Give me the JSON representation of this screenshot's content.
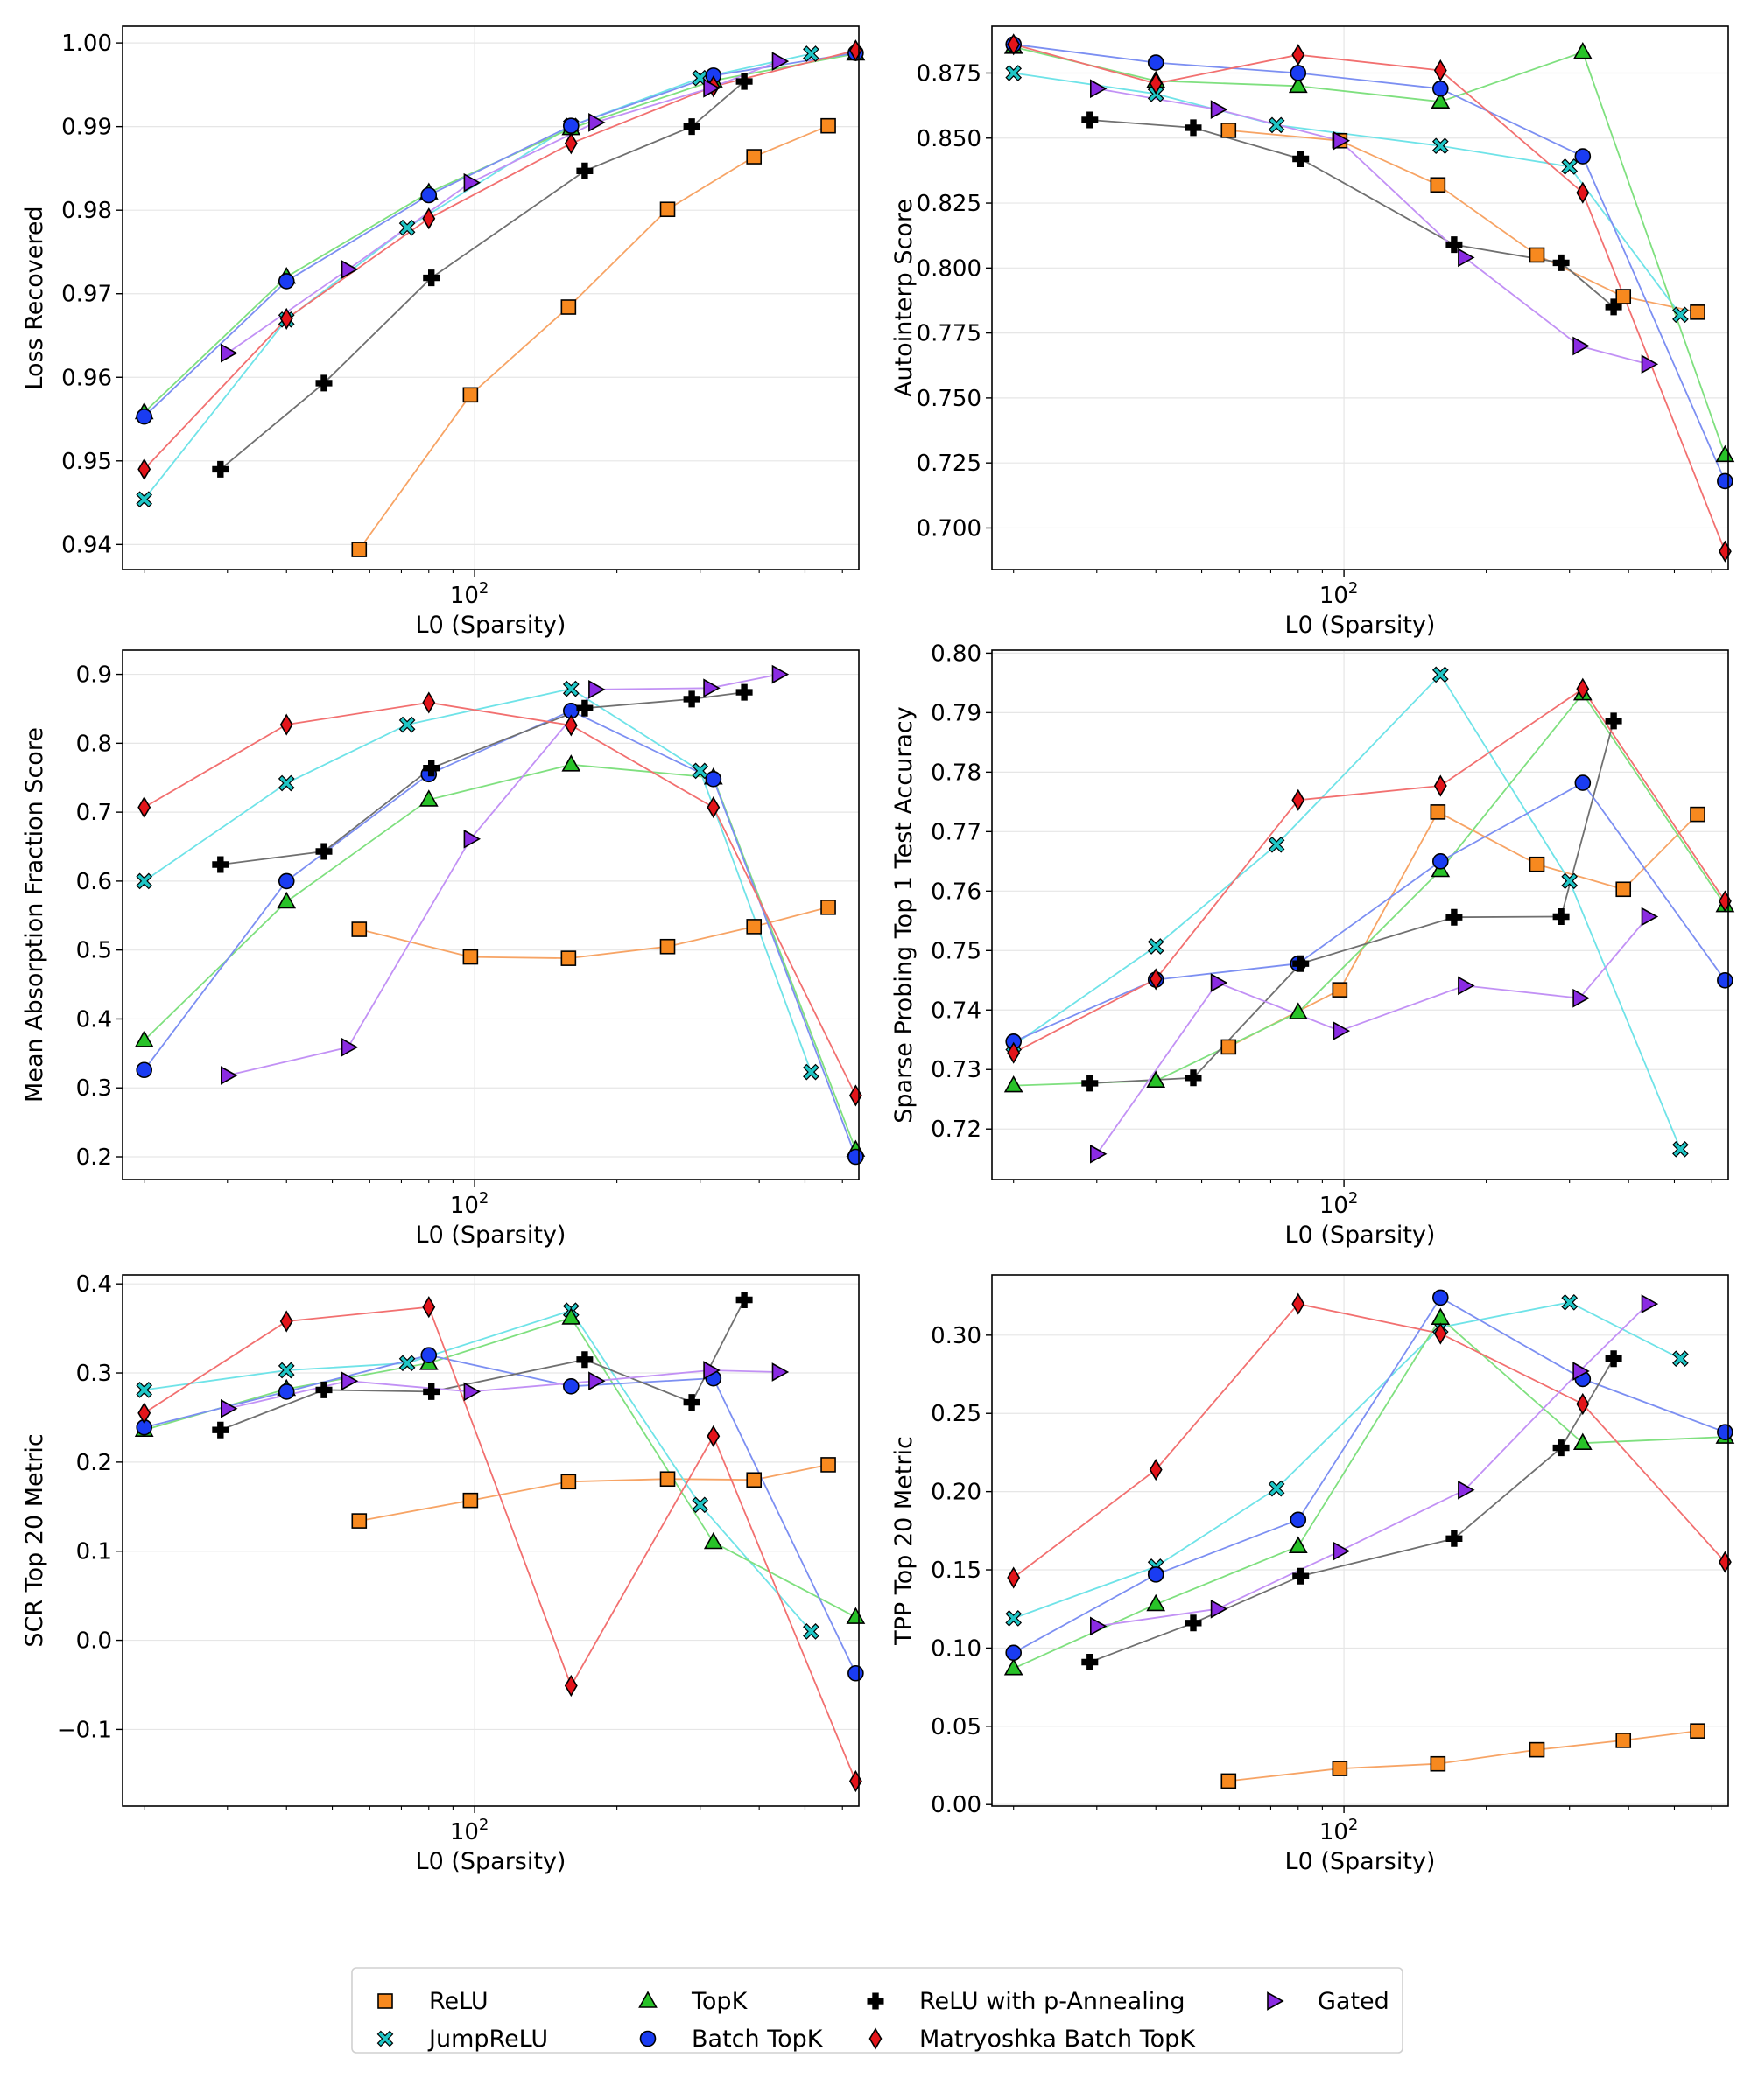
{
  "legend": {
    "placement": "bottom-center",
    "columns": 4,
    "entries": [
      {
        "name": "ReLU",
        "color": "#f7891f",
        "marker": "square"
      },
      {
        "name": "JumpReLU",
        "color": "#1fc6c6",
        "marker": "x"
      },
      {
        "name": "TopK",
        "color": "#28c228",
        "marker": "triangle"
      },
      {
        "name": "Batch TopK",
        "color": "#1a3cf2",
        "marker": "circle"
      },
      {
        "name": "ReLU with p-Annealing",
        "color": "#000000",
        "marker": "plus"
      },
      {
        "name": "Matryoshka Batch TopK",
        "color": "#e3141a",
        "marker": "diamond"
      },
      {
        "name": "Gated",
        "color": "#8a2be2",
        "marker": "triangle-right"
      }
    ]
  },
  "line_colors": {
    "ReLU": "#f7a465",
    "JumpReLU": "#6fe3e8",
    "TopK": "#7fe07f",
    "Batch TopK": "#7c8ff2",
    "ReLU with p-Annealing": "#707070",
    "Matryoshka Batch TopK": "#f27070",
    "Gated": "#c291f5"
  },
  "chart_data": [
    {
      "type": "line",
      "xscale": "log",
      "xlim": [
        18,
        650
      ],
      "ylim": [
        0.937,
        1.002
      ],
      "xticks": [
        {
          "value": 100,
          "base": "10",
          "exp": "2"
        }
      ],
      "yticks": [
        0.94,
        0.95,
        0.96,
        0.97,
        0.98,
        0.99,
        1.0
      ],
      "yticklabels": [
        "0.94",
        "0.95",
        "0.96",
        "0.97",
        "0.98",
        "0.99",
        "1.00"
      ],
      "xlabel": "L0 (Sparsity)",
      "ylabel": "Loss Recovered",
      "grid": true,
      "series": [
        {
          "name": "ReLU",
          "x": [
            57,
            98,
            158,
            256,
            390,
            560
          ],
          "y": [
            0.9394,
            0.9579,
            0.9684,
            0.9801,
            0.9864,
            0.9901
          ]
        },
        {
          "name": "JumpReLU",
          "x": [
            20,
            40,
            72,
            160,
            300,
            515
          ],
          "y": [
            0.9454,
            0.9669,
            0.9779,
            0.9901,
            0.9958,
            0.9987
          ]
        },
        {
          "name": "TopK",
          "x": [
            20,
            40,
            80,
            160,
            320,
            640
          ],
          "y": [
            0.9558,
            0.972,
            0.9821,
            0.9898,
            0.9955,
            0.9987
          ]
        },
        {
          "name": "Batch TopK",
          "x": [
            20,
            40,
            80,
            160,
            320,
            640
          ],
          "y": [
            0.9553,
            0.9715,
            0.9818,
            0.9901,
            0.9961,
            0.9988
          ]
        },
        {
          "name": "ReLU with p-Annealing",
          "x": [
            29,
            48,
            81,
            171,
            288,
            372
          ],
          "y": [
            0.949,
            0.9593,
            0.9719,
            0.9847,
            0.99,
            0.9954
          ]
        },
        {
          "name": "Matryoshka Batch TopK",
          "x": [
            20,
            40,
            80,
            160,
            320,
            640
          ],
          "y": [
            0.949,
            0.967,
            0.979,
            0.988,
            0.9948,
            0.9991
          ]
        },
        {
          "name": "Gated",
          "x": [
            30,
            54,
            98,
            180,
            315,
            440
          ],
          "y": [
            0.9629,
            0.9729,
            0.9833,
            0.9905,
            0.9946,
            0.9978
          ]
        }
      ]
    },
    {
      "type": "line",
      "xscale": "log",
      "xlim": [
        18,
        650
      ],
      "ylim": [
        0.684,
        0.893
      ],
      "xticks": [
        {
          "value": 100,
          "base": "10",
          "exp": "2"
        }
      ],
      "yticks": [
        0.7,
        0.725,
        0.75,
        0.775,
        0.8,
        0.825,
        0.85,
        0.875
      ],
      "yticklabels": [
        "0.700",
        "0.725",
        "0.750",
        "0.775",
        "0.800",
        "0.825",
        "0.850",
        "0.875"
      ],
      "xlabel": "L0 (Sparsity)",
      "ylabel": "Autointerp Score",
      "grid": true,
      "series": [
        {
          "name": "ReLU",
          "x": [
            57,
            98,
            158,
            256,
            390,
            560
          ],
          "y": [
            0.853,
            0.849,
            0.832,
            0.805,
            0.789,
            0.783
          ]
        },
        {
          "name": "JumpReLU",
          "x": [
            20,
            40,
            72,
            160,
            300,
            515
          ],
          "y": [
            0.875,
            0.867,
            0.855,
            0.847,
            0.839,
            0.782
          ]
        },
        {
          "name": "TopK",
          "x": [
            20,
            40,
            80,
            160,
            320,
            640
          ],
          "y": [
            0.885,
            0.872,
            0.87,
            0.864,
            0.883,
            0.728
          ]
        },
        {
          "name": "Batch TopK",
          "x": [
            20,
            40,
            80,
            160,
            320,
            640
          ],
          "y": [
            0.886,
            0.879,
            0.875,
            0.869,
            0.843,
            0.718
          ]
        },
        {
          "name": "ReLU with p-Annealing",
          "x": [
            29,
            48,
            81,
            171,
            288,
            372
          ],
          "y": [
            0.857,
            0.854,
            0.842,
            0.809,
            0.802,
            0.785
          ]
        },
        {
          "name": "Matryoshka Batch TopK",
          "x": [
            20,
            40,
            80,
            160,
            320,
            640
          ],
          "y": [
            0.886,
            0.871,
            0.882,
            0.876,
            0.829,
            0.691
          ]
        },
        {
          "name": "Gated",
          "x": [
            30,
            54,
            98,
            180,
            315,
            440
          ],
          "y": [
            0.869,
            0.861,
            0.849,
            0.804,
            0.77,
            0.763
          ]
        }
      ]
    },
    {
      "type": "line",
      "xscale": "log",
      "xlim": [
        18,
        650
      ],
      "ylim": [
        0.167,
        0.935
      ],
      "xticks": [
        {
          "value": 100,
          "base": "10",
          "exp": "2"
        }
      ],
      "yticks": [
        0.2,
        0.3,
        0.4,
        0.5,
        0.6,
        0.7,
        0.8,
        0.9
      ],
      "yticklabels": [
        "0.2",
        "0.3",
        "0.4",
        "0.5",
        "0.6",
        "0.7",
        "0.8",
        "0.9"
      ],
      "xlabel": "L0 (Sparsity)",
      "ylabel": "Mean Absorption Fraction Score",
      "grid": true,
      "series": [
        {
          "name": "ReLU",
          "x": [
            57,
            98,
            158,
            256,
            390,
            560
          ],
          "y": [
            0.53,
            0.49,
            0.488,
            0.505,
            0.534,
            0.562
          ]
        },
        {
          "name": "JumpReLU",
          "x": [
            20,
            40,
            72,
            160,
            300,
            515
          ],
          "y": [
            0.6,
            0.742,
            0.827,
            0.879,
            0.76,
            0.323
          ]
        },
        {
          "name": "TopK",
          "x": [
            20,
            40,
            80,
            160,
            320,
            640
          ],
          "y": [
            0.369,
            0.57,
            0.718,
            0.769,
            0.75,
            0.21
          ]
        },
        {
          "name": "Batch TopK",
          "x": [
            20,
            40,
            80,
            160,
            320,
            640
          ],
          "y": [
            0.326,
            0.6,
            0.755,
            0.847,
            0.748,
            0.2
          ]
        },
        {
          "name": "ReLU with p-Annealing",
          "x": [
            29,
            48,
            81,
            171,
            288,
            372
          ],
          "y": [
            0.624,
            0.643,
            0.764,
            0.851,
            0.864,
            0.874
          ]
        },
        {
          "name": "Matryoshka Batch TopK",
          "x": [
            20,
            40,
            80,
            160,
            320,
            640
          ],
          "y": [
            0.707,
            0.827,
            0.859,
            0.826,
            0.707,
            0.289
          ]
        },
        {
          "name": "Gated",
          "x": [
            30,
            54,
            98,
            180,
            315,
            440
          ],
          "y": [
            0.318,
            0.359,
            0.661,
            0.878,
            0.88,
            0.9
          ]
        }
      ]
    },
    {
      "type": "line",
      "xscale": "log",
      "xlim": [
        18,
        650
      ],
      "ylim": [
        0.7115,
        0.8005
      ],
      "xticks": [
        {
          "value": 100,
          "base": "10",
          "exp": "2"
        }
      ],
      "yticks": [
        0.72,
        0.73,
        0.74,
        0.75,
        0.76,
        0.77,
        0.78,
        0.79,
        0.8
      ],
      "yticklabels": [
        "0.72",
        "0.73",
        "0.74",
        "0.75",
        "0.76",
        "0.77",
        "0.78",
        "0.79",
        "0.80"
      ],
      "xlabel": "L0 (Sparsity)",
      "ylabel": "Sparse Probing Top 1 Test Accuracy",
      "grid": true,
      "series": [
        {
          "name": "ReLU",
          "x": [
            57,
            98,
            158,
            256,
            390,
            560
          ],
          "y": [
            0.7338,
            0.7434,
            0.7733,
            0.7645,
            0.7603,
            0.7729
          ]
        },
        {
          "name": "JumpReLU",
          "x": [
            20,
            40,
            72,
            160,
            300,
            515
          ],
          "y": [
            0.7341,
            0.7507,
            0.7678,
            0.7964,
            0.7617,
            0.7166
          ]
        },
        {
          "name": "TopK",
          "x": [
            20,
            40,
            80,
            160,
            320,
            640
          ],
          "y": [
            0.7273,
            0.7281,
            0.7396,
            0.7635,
            0.7932,
            0.7576
          ]
        },
        {
          "name": "Batch TopK",
          "x": [
            20,
            40,
            80,
            160,
            320,
            640
          ],
          "y": [
            0.7347,
            0.7451,
            0.7478,
            0.765,
            0.7782,
            0.745
          ]
        },
        {
          "name": "ReLU with p-Annealing",
          "x": [
            29,
            48,
            81,
            171,
            288,
            372
          ],
          "y": [
            0.7277,
            0.7286,
            0.7478,
            0.7556,
            0.7557,
            0.7886
          ]
        },
        {
          "name": "Matryoshka Batch TopK",
          "x": [
            20,
            40,
            80,
            160,
            320,
            640
          ],
          "y": [
            0.7328,
            0.7452,
            0.7753,
            0.7777,
            0.794,
            0.7583
          ]
        },
        {
          "name": "Gated",
          "x": [
            30,
            54,
            98,
            180,
            315,
            440
          ],
          "y": [
            0.7158,
            0.7446,
            0.7365,
            0.7441,
            0.742,
            0.7557
          ]
        }
      ]
    },
    {
      "type": "line",
      "xscale": "log",
      "xlim": [
        18,
        650
      ],
      "ylim": [
        -0.186,
        0.41
      ],
      "xticks": [
        {
          "value": 100,
          "base": "10",
          "exp": "2"
        }
      ],
      "yticks": [
        -0.1,
        0.0,
        0.1,
        0.2,
        0.3,
        0.4
      ],
      "yticklabels": [
        "−0.1",
        "0.0",
        "0.1",
        "0.2",
        "0.3",
        "0.4"
      ],
      "xlabel": "L0 (Sparsity)",
      "ylabel": "SCR Top 20 Metric",
      "grid": true,
      "series": [
        {
          "name": "ReLU",
          "x": [
            57,
            98,
            158,
            256,
            390,
            560
          ],
          "y": [
            0.134,
            0.157,
            0.178,
            0.181,
            0.18,
            0.197
          ]
        },
        {
          "name": "JumpReLU",
          "x": [
            20,
            40,
            72,
            160,
            300,
            515
          ],
          "y": [
            0.281,
            0.303,
            0.311,
            0.37,
            0.152,
            0.01
          ]
        },
        {
          "name": "TopK",
          "x": [
            20,
            40,
            80,
            160,
            320,
            640
          ],
          "y": [
            0.236,
            0.282,
            0.311,
            0.362,
            0.11,
            0.026
          ]
        },
        {
          "name": "Batch TopK",
          "x": [
            20,
            40,
            80,
            160,
            320,
            640
          ],
          "y": [
            0.239,
            0.279,
            0.32,
            0.285,
            0.294,
            -0.037
          ]
        },
        {
          "name": "ReLU with p-Annealing",
          "x": [
            29,
            48,
            81,
            171,
            288,
            372
          ],
          "y": [
            0.236,
            0.281,
            0.279,
            0.315,
            0.267,
            0.382
          ]
        },
        {
          "name": "Matryoshka Batch TopK",
          "x": [
            20,
            40,
            80,
            160,
            320,
            640
          ],
          "y": [
            0.255,
            0.358,
            0.374,
            -0.051,
            0.229,
            -0.158
          ]
        },
        {
          "name": "Gated",
          "x": [
            30,
            54,
            98,
            180,
            315,
            440
          ],
          "y": [
            0.26,
            0.291,
            0.279,
            0.291,
            0.303,
            0.301
          ]
        }
      ]
    },
    {
      "type": "line",
      "xscale": "log",
      "xlim": [
        18,
        650
      ],
      "ylim": [
        -0.001,
        0.3385
      ],
      "xticks": [
        {
          "value": 100,
          "base": "10",
          "exp": "2"
        }
      ],
      "yticks": [
        0.0,
        0.05,
        0.1,
        0.15,
        0.2,
        0.25,
        0.3
      ],
      "yticklabels": [
        "0.00",
        "0.05",
        "0.10",
        "0.15",
        "0.20",
        "0.25",
        "0.30"
      ],
      "xlabel": "L0 (Sparsity)",
      "ylabel": "TPP Top 20 Metric",
      "grid": true,
      "series": [
        {
          "name": "ReLU",
          "x": [
            57,
            98,
            158,
            256,
            390,
            560
          ],
          "y": [
            0.015,
            0.023,
            0.026,
            0.035,
            0.041,
            0.047
          ]
        },
        {
          "name": "JumpReLU",
          "x": [
            20,
            40,
            72,
            160,
            300,
            515
          ],
          "y": [
            0.119,
            0.152,
            0.202,
            0.305,
            0.321,
            0.285
          ]
        },
        {
          "name": "TopK",
          "x": [
            20,
            40,
            80,
            160,
            320,
            640
          ],
          "y": [
            0.087,
            0.128,
            0.165,
            0.311,
            0.231,
            0.235
          ]
        },
        {
          "name": "Batch TopK",
          "x": [
            20,
            40,
            80,
            160,
            320,
            640
          ],
          "y": [
            0.097,
            0.147,
            0.182,
            0.324,
            0.272,
            0.238
          ]
        },
        {
          "name": "ReLU with p-Annealing",
          "x": [
            29,
            48,
            81,
            171,
            288,
            372
          ],
          "y": [
            0.091,
            0.116,
            0.146,
            0.17,
            0.228,
            0.285
          ]
        },
        {
          "name": "Matryoshka Batch TopK",
          "x": [
            20,
            40,
            80,
            160,
            320,
            640
          ],
          "y": [
            0.145,
            0.214,
            0.32,
            0.301,
            0.256,
            0.155
          ]
        },
        {
          "name": "Gated",
          "x": [
            30,
            54,
            98,
            180,
            315,
            440
          ],
          "y": [
            0.114,
            0.125,
            0.162,
            0.201,
            0.277,
            0.32
          ]
        }
      ]
    }
  ]
}
